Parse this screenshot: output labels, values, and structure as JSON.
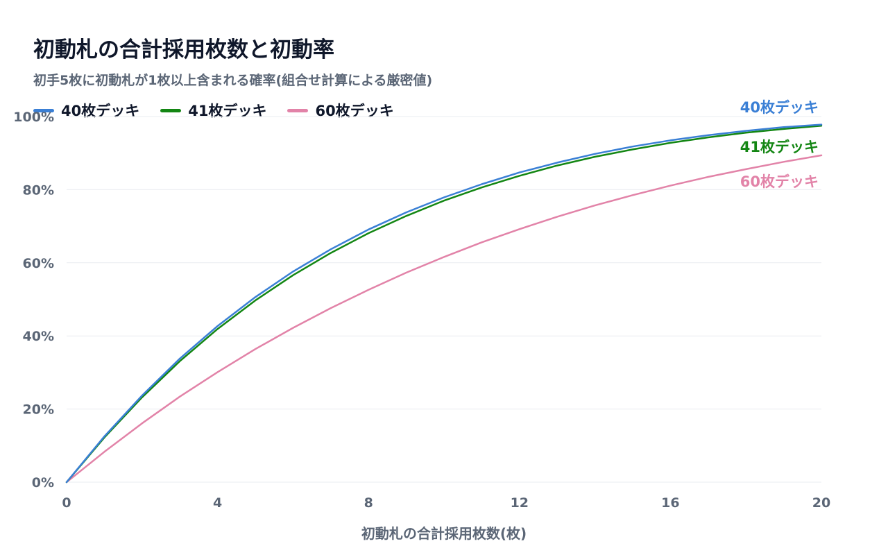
{
  "chart_data": {
    "type": "line",
    "title": "初動札の合計採用枚数と初動率",
    "subtitle": "初手5枚に初動札が1枚以上含まれる確率(組合せ計算による厳密値)",
    "xlabel": "初動札の合計採用枚数(枚)",
    "ylabel": "",
    "xlim": [
      0,
      20
    ],
    "ylim": [
      0,
      100
    ],
    "x_ticks": [
      0,
      4,
      8,
      12,
      16,
      20
    ],
    "y_ticks": [
      0,
      20,
      40,
      60,
      80,
      100
    ],
    "y_tick_labels": [
      "0%",
      "20%",
      "40%",
      "60%",
      "80%",
      "100%"
    ],
    "grid": true,
    "legend": "top-left",
    "x": [
      0,
      1,
      2,
      3,
      4,
      5,
      6,
      7,
      8,
      9,
      10,
      11,
      12,
      13,
      14,
      15,
      16,
      17,
      18,
      19,
      20
    ],
    "series": [
      {
        "name": "40枚デッキ",
        "end_label": "40枚デッキ",
        "color": "#3a7fd5",
        "values": [
          0,
          12.5,
          23.7,
          33.8,
          42.7,
          50.6,
          57.6,
          63.7,
          69.1,
          73.8,
          77.9,
          81.5,
          84.7,
          87.4,
          89.8,
          91.8,
          93.5,
          94.9,
          96.1,
          97.1,
          97.8
        ]
      },
      {
        "name": "41枚デッキ",
        "end_label": "41枚デッキ",
        "color": "#138613",
        "values": [
          0,
          12.2,
          23.2,
          33.1,
          41.9,
          49.7,
          56.6,
          62.7,
          68.1,
          72.8,
          77.0,
          80.6,
          83.8,
          86.6,
          89.0,
          91.0,
          92.8,
          94.3,
          95.6,
          96.6,
          97.5
        ]
      },
      {
        "name": "60枚デッキ",
        "end_label": "60枚デッキ",
        "color": "#e283a8",
        "values": [
          0,
          8.3,
          16.1,
          23.4,
          30.1,
          36.4,
          42.2,
          47.6,
          52.6,
          57.3,
          61.6,
          65.6,
          69.2,
          72.6,
          75.7,
          78.5,
          81.1,
          83.5,
          85.6,
          87.6,
          89.4
        ]
      }
    ]
  }
}
